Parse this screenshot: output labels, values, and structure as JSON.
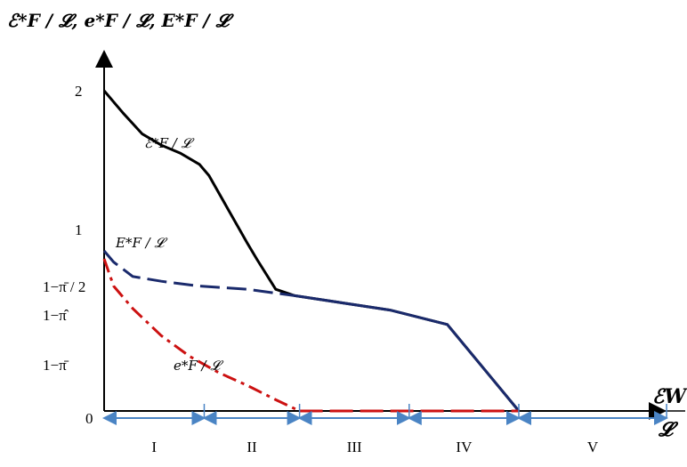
{
  "chart_data": {
    "type": "line",
    "ylabel": "ℰ*F / 𝓛, e*F / 𝓛, E*F / 𝓛",
    "xlabel_num": "ℰW",
    "xlabel_den": "𝓛",
    "yticks": [
      {
        "value": 2,
        "label": "2"
      },
      {
        "value": 1,
        "label": "1"
      },
      {
        "value": 0.62,
        "label": "1−π̄ / 2"
      },
      {
        "value": 0.56,
        "label": "1−π̂"
      },
      {
        "value": 0.24,
        "label": "1−π̄"
      },
      {
        "value": 0,
        "label": "0"
      }
    ],
    "ylim": [
      0,
      2.35
    ],
    "xlim": [
      0,
      7.0
    ],
    "series": [
      {
        "name": "ℰ*F / 𝓛",
        "color": "#000000",
        "style": "solid",
        "points": [
          [
            0,
            2.0
          ],
          [
            0.2,
            1.86
          ],
          [
            0.4,
            1.73
          ],
          [
            0.6,
            1.66
          ],
          [
            0.8,
            1.61
          ],
          [
            1.0,
            1.54
          ],
          [
            1.1,
            1.47
          ],
          [
            1.3,
            1.26
          ],
          [
            1.5,
            1.05
          ],
          [
            1.6,
            0.95
          ],
          [
            1.8,
            0.76
          ],
          [
            2.0,
            0.72
          ],
          [
            3.0,
            0.63
          ],
          [
            3.6,
            0.54
          ],
          [
            4.1,
            0.18
          ],
          [
            4.35,
            0
          ]
        ]
      },
      {
        "name": "E*F / 𝓛",
        "color": "#1a2a6c",
        "style": "dashed-then-solid",
        "points": [
          [
            0,
            1.0
          ],
          [
            0.1,
            0.93
          ],
          [
            0.3,
            0.84
          ],
          [
            0.6,
            0.81
          ],
          [
            1.0,
            0.78
          ],
          [
            1.5,
            0.76
          ],
          [
            2.0,
            0.72
          ],
          [
            3.0,
            0.63
          ],
          [
            3.6,
            0.54
          ],
          [
            4.1,
            0.18
          ],
          [
            4.35,
            0
          ]
        ]
      },
      {
        "name": "e*F / 𝓛",
        "color": "#cc1111",
        "style": "dashdot",
        "points": [
          [
            0,
            0.95
          ],
          [
            0.1,
            0.78
          ],
          [
            0.3,
            0.64
          ],
          [
            0.6,
            0.47
          ],
          [
            0.9,
            0.34
          ],
          [
            1.2,
            0.24
          ],
          [
            1.5,
            0.16
          ],
          [
            1.8,
            0.07
          ],
          [
            2.05,
            0.0
          ],
          [
            4.35,
            0.0
          ]
        ]
      }
    ],
    "regions": [
      "I",
      "II",
      "III",
      "IV",
      "V"
    ],
    "region_bounds": [
      0,
      1.05,
      2.05,
      3.2,
      4.35,
      5.9
    ]
  }
}
